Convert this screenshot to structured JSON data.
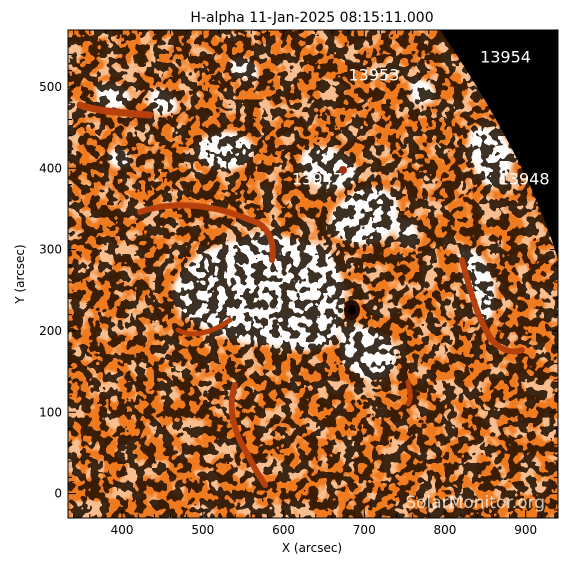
{
  "title": "H-alpha 11-Jan-2025 08:15:11.000",
  "axes": {
    "xlabel": "X (arcsec)",
    "ylabel": "Y (arcsec)",
    "xlim": [
      333,
      940
    ],
    "ylim": [
      -30,
      570
    ],
    "xticks": [
      400,
      500,
      600,
      700,
      800,
      900
    ],
    "yticks": [
      0,
      100,
      200,
      300,
      400,
      500
    ]
  },
  "regions": [
    {
      "label": "13954",
      "x": 875,
      "y": 530
    },
    {
      "label": "13953",
      "x": 712,
      "y": 508
    },
    {
      "label": "13947",
      "x": 642,
      "y": 380
    },
    {
      "label": "13948",
      "x": 898,
      "y": 380
    }
  ],
  "watermark": "SolarMonitor.org",
  "colors": {
    "disk_base": "#f07a1e",
    "plage": "#ffffff",
    "filament": "#b8400c",
    "space": "#000000"
  }
}
